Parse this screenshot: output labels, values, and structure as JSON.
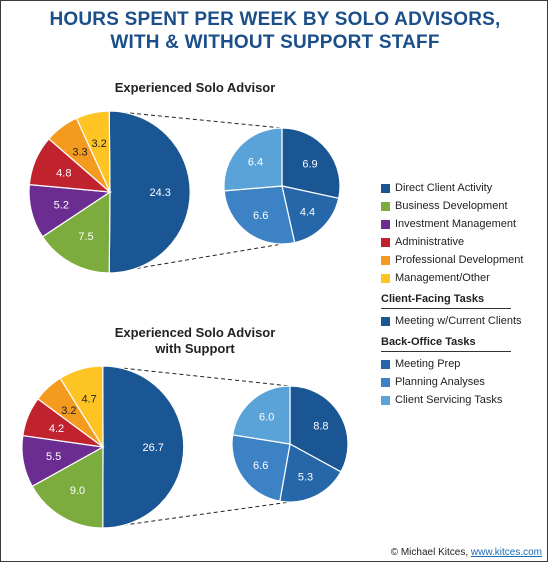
{
  "title_line1": "HOURS SPENT PER WEEK BY SOLO ADVISORS,",
  "title_line2": "WITH & WITHOUT SUPPORT STAFF",
  "credit_text": "© Michael Kitces, ",
  "credit_link": "www.kitces.com",
  "chart_data": [
    {
      "type": "pie",
      "title": "Experienced Solo Advisor",
      "slices": [
        {
          "label": "Direct Client Activity",
          "value": 24.3,
          "color": "#1a5594"
        },
        {
          "label": "Business Development",
          "value": 7.5,
          "color": "#7cab3e"
        },
        {
          "label": "Investment Management",
          "value": 5.2,
          "color": "#6b2d91"
        },
        {
          "label": "Administrative",
          "value": 4.8,
          "color": "#c0222e"
        },
        {
          "label": "Professional Development",
          "value": 3.3,
          "color": "#f39a1f"
        },
        {
          "label": "Management/Other",
          "value": 3.2,
          "color": "#fdc424"
        }
      ],
      "breakdown": [
        {
          "label": "Meeting w/Current Clients",
          "value": 6.9,
          "color": "#1a5594"
        },
        {
          "label": "Meeting Prep",
          "value": 4.4,
          "color": "#2667a9"
        },
        {
          "label": "Planning Analyses",
          "value": 6.6,
          "color": "#3c82c4"
        },
        {
          "label": "Client Servicing Tasks",
          "value": 6.4,
          "color": "#5aa3d9"
        }
      ]
    },
    {
      "type": "pie",
      "title_line1": "Experienced Solo Advisor",
      "title_line2": "with Support",
      "slices": [
        {
          "label": "Direct Client Activity",
          "value": 26.7,
          "color": "#1a5594"
        },
        {
          "label": "Business Development",
          "value": 9.0,
          "color": "#7cab3e"
        },
        {
          "label": "Investment Management",
          "value": 5.5,
          "color": "#6b2d91"
        },
        {
          "label": "Administrative",
          "value": 4.2,
          "color": "#c0222e"
        },
        {
          "label": "Professional Development",
          "value": 3.2,
          "color": "#f39a1f"
        },
        {
          "label": "Management/Other",
          "value": 4.7,
          "color": "#fdc424"
        }
      ],
      "breakdown": [
        {
          "label": "Meeting w/Current Clients",
          "value": 8.8,
          "color": "#1a5594"
        },
        {
          "label": "Meeting Prep",
          "value": 5.3,
          "color": "#2667a9"
        },
        {
          "label": "Planning Analyses",
          "value": 6.6,
          "color": "#3c82c4"
        },
        {
          "label": "Client Servicing Tasks",
          "value": 6.0,
          "color": "#5aa3d9"
        }
      ]
    }
  ],
  "legend": {
    "main": [
      {
        "label": "Direct Client Activity",
        "color": "#1a5594"
      },
      {
        "label": "Business Development",
        "color": "#7cab3e"
      },
      {
        "label": "Investment Management",
        "color": "#6b2d91"
      },
      {
        "label": "Administrative",
        "color": "#c0222e"
      },
      {
        "label": "Professional Development",
        "color": "#f39a1f"
      },
      {
        "label": "Management/Other",
        "color": "#fdc424"
      }
    ],
    "client_facing_heading": "Client-Facing Tasks",
    "client_facing": [
      {
        "label": "Meeting w/Current Clients",
        "color": "#1a5594"
      }
    ],
    "back_office_heading": "Back-Office Tasks",
    "back_office": [
      {
        "label": "Meeting Prep",
        "color": "#2667a9"
      },
      {
        "label": "Planning Analyses",
        "color": "#3c82c4"
      },
      {
        "label": "Client Servicing Tasks",
        "color": "#5aa3d9"
      }
    ]
  }
}
